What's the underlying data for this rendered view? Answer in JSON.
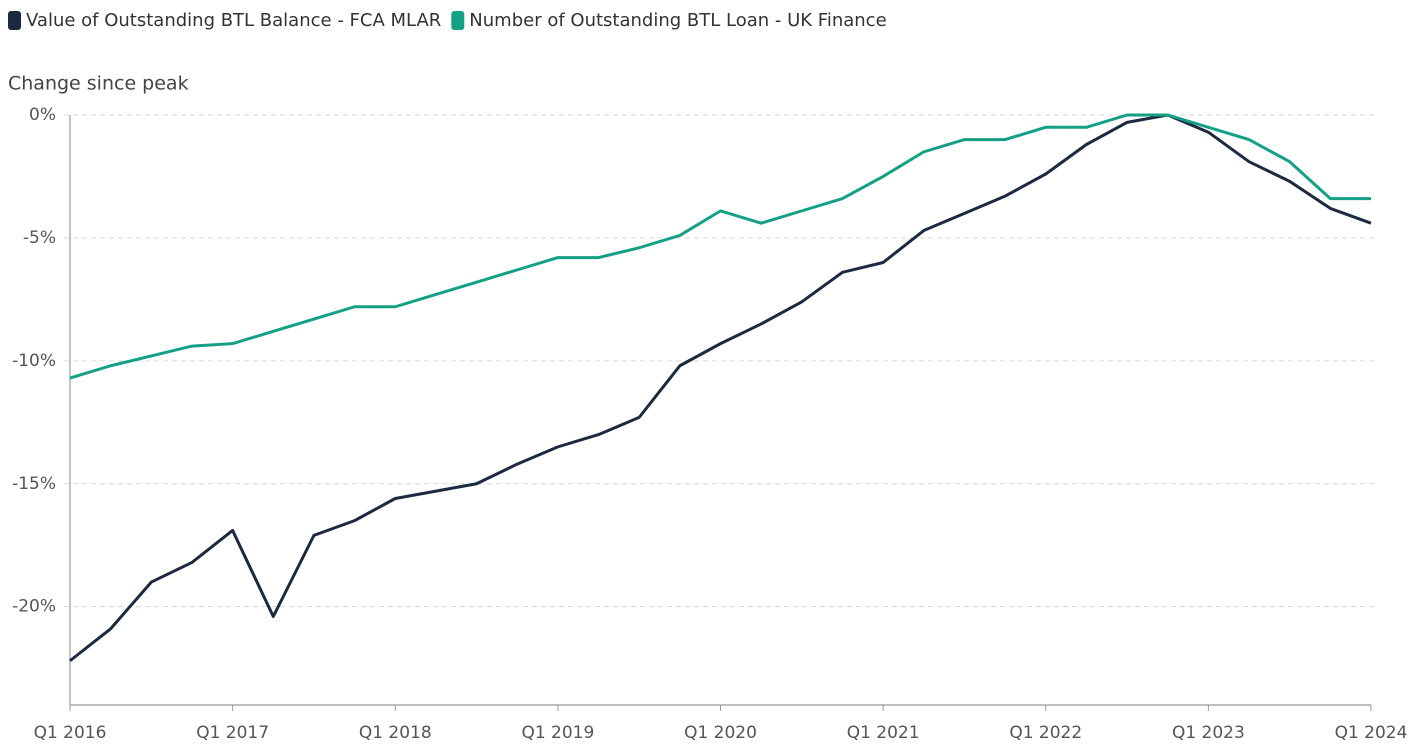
{
  "chart_data": {
    "type": "line",
    "y_axis_label": "Change since peak",
    "categories": [
      "Q1 2016",
      null,
      null,
      null,
      "Q1 2017",
      null,
      null,
      null,
      "Q1 2018",
      null,
      null,
      null,
      "Q1 2019",
      null,
      null,
      null,
      "Q1 2020",
      null,
      null,
      null,
      "Q1 2021",
      null,
      null,
      null,
      "Q1 2022",
      null,
      null,
      null,
      "Q1 2023",
      null,
      null,
      null,
      "Q1 2024"
    ],
    "series": [
      {
        "name": "Value of Outstanding BTL Balance - FCA MLAR",
        "color": "#1c2a3f",
        "values": [
          -22.2,
          -20.9,
          -19.0,
          -18.2,
          -16.9,
          -20.4,
          -17.1,
          -16.5,
          -15.6,
          -15.3,
          -15.0,
          -14.2,
          -13.5,
          -13.0,
          -12.3,
          -10.2,
          -9.3,
          -8.5,
          -7.6,
          -6.4,
          -6.0,
          -4.7,
          -4.0,
          -3.3,
          -2.4,
          -1.2,
          -0.3,
          0,
          -0.7,
          -1.9,
          -2.7,
          -3.8,
          -4.4
        ]
      },
      {
        "name": "Number of Outstanding BTL Loan - UK Finance",
        "color": "#13a085",
        "values": [
          -10.7,
          -10.2,
          -9.8,
          -9.4,
          -9.3,
          -8.8,
          -8.3,
          -7.8,
          -7.8,
          -7.3,
          -6.8,
          -6.3,
          -5.8,
          -5.8,
          -5.4,
          -4.9,
          -3.9,
          -4.4,
          -3.9,
          -3.4,
          -2.5,
          -1.5,
          -1.0,
          -1.0,
          -0.5,
          -0.5,
          0,
          0,
          -0.5,
          -1.0,
          -1.9,
          -3.4,
          -3.4
        ]
      }
    ],
    "ylim": [
      -24,
      0
    ],
    "yticks": [
      {
        "value": 0,
        "label": "0%"
      },
      {
        "value": -5,
        "label": "-5%"
      },
      {
        "value": -10,
        "label": "-10%"
      },
      {
        "value": -15,
        "label": "-15%"
      },
      {
        "value": -20,
        "label": "-20%"
      }
    ],
    "grid": true,
    "legend": "top-left"
  }
}
